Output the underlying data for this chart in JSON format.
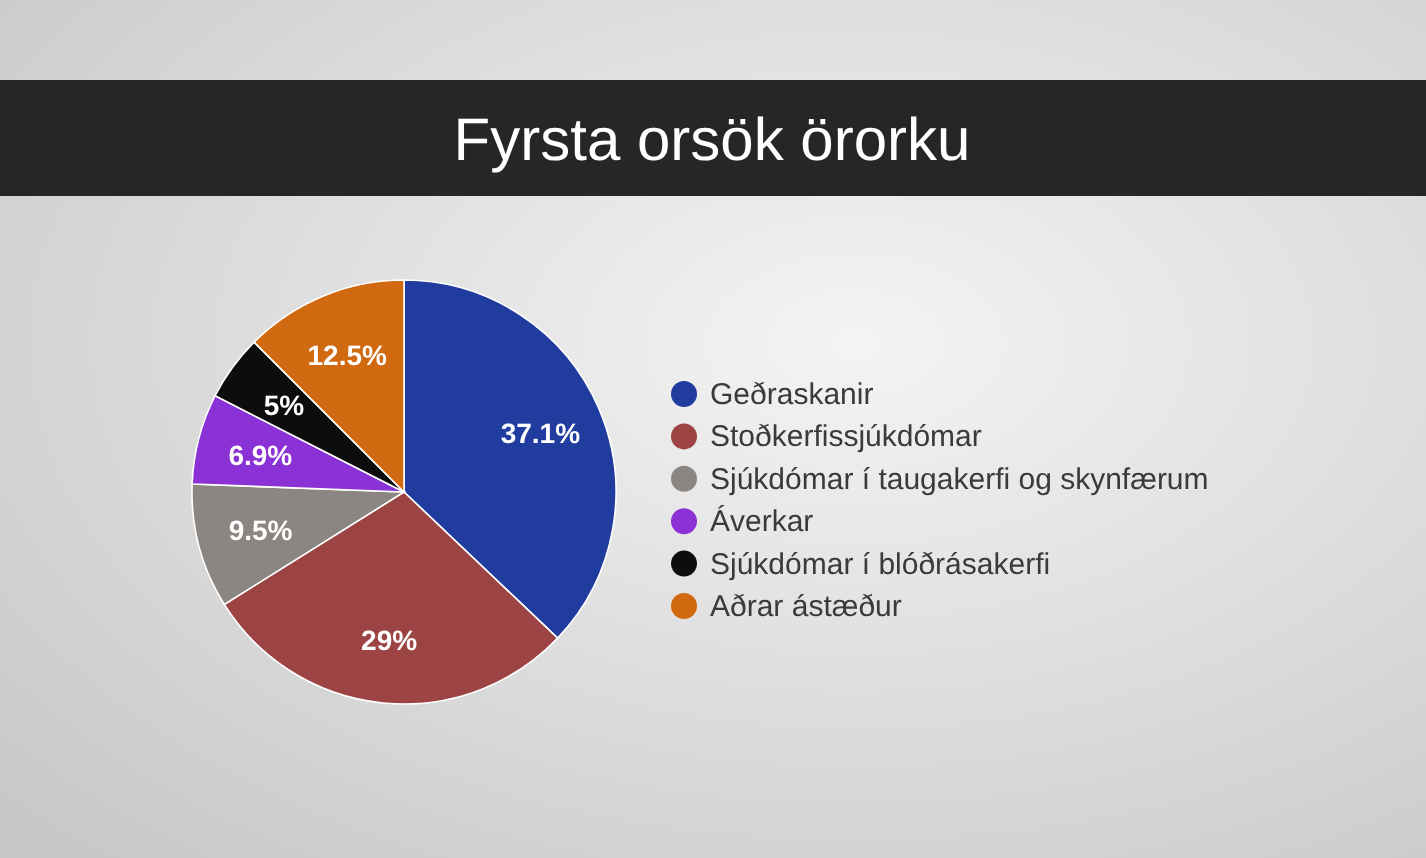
{
  "chart_data": {
    "type": "pie",
    "title": "Fyrsta orsök örorku",
    "categories": [
      "Geðraskanir",
      "Stoðkerfissjúkdómar",
      "Sjúkdómar í taugakerfi og skynfærum",
      "Áverkar",
      "Sjúkdómar í blóðrásakerfi",
      "Aðrar ástæður"
    ],
    "values": [
      37.1,
      29,
      9.5,
      6.9,
      5,
      12.5
    ],
    "value_labels": [
      "37.1%",
      "29%",
      "9.5%",
      "6.9%",
      "5%",
      "12.5%"
    ],
    "colors": [
      "#1f3c9e",
      "#9c4444",
      "#8c8682",
      "#8a32d6",
      "#0d0d0d",
      "#d0690f"
    ],
    "legend": "right"
  }
}
